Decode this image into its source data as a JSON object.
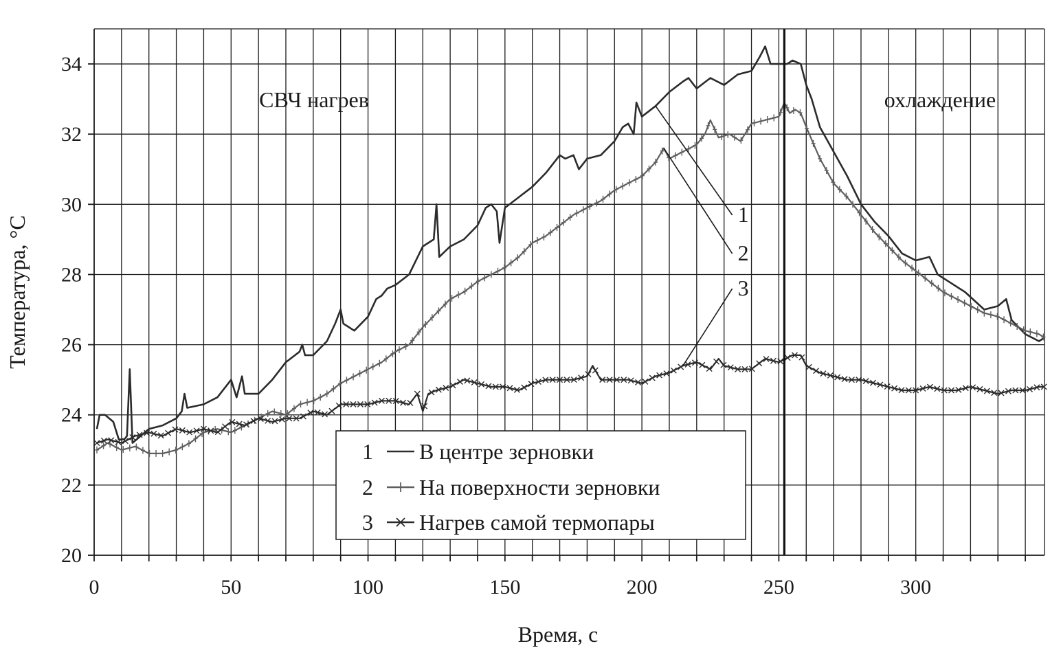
{
  "chart_data": {
    "type": "line",
    "title": "",
    "xlabel": "Время, с",
    "ylabel": "Температура, °С",
    "xlim": [
      0,
      347
    ],
    "ylim": [
      20,
      35
    ],
    "x_ticks": [
      0,
      50,
      100,
      150,
      200,
      250,
      300
    ],
    "y_ticks": [
      20,
      22,
      24,
      26,
      28,
      30,
      32,
      34
    ],
    "x_grid_step": 10,
    "grid": true,
    "legend_position": "bottom-center",
    "phase_boundary_x": 252,
    "regions": [
      {
        "label": "СВЧ нагрев",
        "position": "top-left"
      },
      {
        "label": "охлаждение",
        "position": "top-right"
      }
    ],
    "series": [
      {
        "id": "1",
        "name": "В центре зерновки",
        "color": "#2b2b2b",
        "marker": "none",
        "points": [
          [
            1,
            23.6
          ],
          [
            2,
            24.0
          ],
          [
            4,
            24.0
          ],
          [
            7,
            23.8
          ],
          [
            9,
            23.3
          ],
          [
            11,
            23.3
          ],
          [
            12,
            23.4
          ],
          [
            13,
            25.3
          ],
          [
            14,
            23.2
          ],
          [
            17,
            23.4
          ],
          [
            20,
            23.6
          ],
          [
            25,
            23.7
          ],
          [
            30,
            23.9
          ],
          [
            32,
            24.1
          ],
          [
            33,
            24.6
          ],
          [
            34,
            24.2
          ],
          [
            40,
            24.3
          ],
          [
            45,
            24.5
          ],
          [
            48,
            24.8
          ],
          [
            50,
            25.0
          ],
          [
            52,
            24.5
          ],
          [
            54,
            25.1
          ],
          [
            55,
            24.6
          ],
          [
            60,
            24.6
          ],
          [
            65,
            25.0
          ],
          [
            70,
            25.5
          ],
          [
            75,
            25.8
          ],
          [
            76,
            26.0
          ],
          [
            77,
            25.7
          ],
          [
            80,
            25.7
          ],
          [
            85,
            26.1
          ],
          [
            88,
            26.6
          ],
          [
            90,
            27.0
          ],
          [
            91,
            26.6
          ],
          [
            95,
            26.4
          ],
          [
            100,
            26.8
          ],
          [
            103,
            27.3
          ],
          [
            105,
            27.4
          ],
          [
            107,
            27.6
          ],
          [
            110,
            27.7
          ],
          [
            115,
            28.0
          ],
          [
            120,
            28.8
          ],
          [
            122,
            28.9
          ],
          [
            124,
            29.0
          ],
          [
            125,
            30.0
          ],
          [
            126,
            28.5
          ],
          [
            130,
            28.8
          ],
          [
            135,
            29.0
          ],
          [
            140,
            29.4
          ],
          [
            143,
            29.9
          ],
          [
            145,
            30.0
          ],
          [
            147,
            29.8
          ],
          [
            148,
            28.9
          ],
          [
            150,
            29.9
          ],
          [
            155,
            30.2
          ],
          [
            160,
            30.5
          ],
          [
            165,
            30.9
          ],
          [
            168,
            31.2
          ],
          [
            170,
            31.4
          ],
          [
            172,
            31.3
          ],
          [
            175,
            31.4
          ],
          [
            177,
            31.0
          ],
          [
            180,
            31.3
          ],
          [
            185,
            31.4
          ],
          [
            190,
            31.8
          ],
          [
            193,
            32.2
          ],
          [
            195,
            32.3
          ],
          [
            197,
            32.0
          ],
          [
            198,
            32.9
          ],
          [
            200,
            32.5
          ],
          [
            205,
            32.8
          ],
          [
            210,
            33.2
          ],
          [
            215,
            33.5
          ],
          [
            217,
            33.6
          ],
          [
            220,
            33.3
          ],
          [
            225,
            33.6
          ],
          [
            230,
            33.4
          ],
          [
            235,
            33.7
          ],
          [
            240,
            33.8
          ],
          [
            243,
            34.2
          ],
          [
            245,
            34.5
          ],
          [
            247,
            34.0
          ],
          [
            250,
            34.0
          ],
          [
            253,
            34.0
          ],
          [
            255,
            34.1
          ],
          [
            258,
            34.0
          ],
          [
            260,
            33.4
          ],
          [
            262,
            33.0
          ],
          [
            265,
            32.2
          ],
          [
            270,
            31.5
          ],
          [
            275,
            30.8
          ],
          [
            280,
            30.0
          ],
          [
            285,
            29.5
          ],
          [
            290,
            29.1
          ],
          [
            295,
            28.6
          ],
          [
            300,
            28.4
          ],
          [
            305,
            28.5
          ],
          [
            308,
            28.0
          ],
          [
            312,
            27.8
          ],
          [
            318,
            27.5
          ],
          [
            325,
            27.0
          ],
          [
            330,
            27.1
          ],
          [
            333,
            27.3
          ],
          [
            335,
            26.7
          ],
          [
            340,
            26.3
          ],
          [
            345,
            26.1
          ],
          [
            347,
            26.2
          ]
        ]
      },
      {
        "id": "2",
        "name": "На поверхности зерновки",
        "color": "#5f5f5f",
        "marker": "plus",
        "points": [
          [
            1,
            23.0
          ],
          [
            5,
            23.2
          ],
          [
            10,
            23.0
          ],
          [
            15,
            23.1
          ],
          [
            20,
            22.9
          ],
          [
            25,
            22.9
          ],
          [
            30,
            23.0
          ],
          [
            35,
            23.2
          ],
          [
            40,
            23.5
          ],
          [
            45,
            23.6
          ],
          [
            50,
            23.5
          ],
          [
            55,
            23.7
          ],
          [
            60,
            23.9
          ],
          [
            65,
            24.1
          ],
          [
            70,
            24.0
          ],
          [
            75,
            24.3
          ],
          [
            80,
            24.4
          ],
          [
            85,
            24.6
          ],
          [
            90,
            24.9
          ],
          [
            95,
            25.1
          ],
          [
            100,
            25.3
          ],
          [
            105,
            25.5
          ],
          [
            110,
            25.8
          ],
          [
            115,
            26.0
          ],
          [
            120,
            26.5
          ],
          [
            125,
            26.9
          ],
          [
            130,
            27.3
          ],
          [
            135,
            27.5
          ],
          [
            140,
            27.8
          ],
          [
            145,
            28.0
          ],
          [
            150,
            28.2
          ],
          [
            155,
            28.5
          ],
          [
            160,
            28.9
          ],
          [
            165,
            29.1
          ],
          [
            170,
            29.4
          ],
          [
            175,
            29.7
          ],
          [
            180,
            29.9
          ],
          [
            185,
            30.1
          ],
          [
            190,
            30.4
          ],
          [
            195,
            30.6
          ],
          [
            200,
            30.8
          ],
          [
            205,
            31.2
          ],
          [
            208,
            31.6
          ],
          [
            210,
            31.3
          ],
          [
            215,
            31.5
          ],
          [
            220,
            31.7
          ],
          [
            223,
            32.0
          ],
          [
            225,
            32.4
          ],
          [
            228,
            31.9
          ],
          [
            232,
            32.0
          ],
          [
            236,
            31.8
          ],
          [
            240,
            32.3
          ],
          [
            245,
            32.4
          ],
          [
            250,
            32.5
          ],
          [
            252,
            32.9
          ],
          [
            254,
            32.6
          ],
          [
            256,
            32.7
          ],
          [
            258,
            32.6
          ],
          [
            260,
            32.2
          ],
          [
            265,
            31.3
          ],
          [
            270,
            30.6
          ],
          [
            275,
            30.2
          ],
          [
            280,
            29.7
          ],
          [
            285,
            29.2
          ],
          [
            290,
            28.8
          ],
          [
            295,
            28.4
          ],
          [
            300,
            28.1
          ],
          [
            305,
            27.8
          ],
          [
            310,
            27.5
          ],
          [
            315,
            27.3
          ],
          [
            320,
            27.1
          ],
          [
            325,
            26.9
          ],
          [
            330,
            26.8
          ],
          [
            335,
            26.6
          ],
          [
            340,
            26.4
          ],
          [
            345,
            26.3
          ],
          [
            347,
            26.2
          ]
        ]
      },
      {
        "id": "3",
        "name": "Нагрев самой термопары",
        "color": "#2b2b2b",
        "marker": "x",
        "points": [
          [
            1,
            23.2
          ],
          [
            5,
            23.3
          ],
          [
            10,
            23.2
          ],
          [
            15,
            23.4
          ],
          [
            20,
            23.5
          ],
          [
            25,
            23.4
          ],
          [
            30,
            23.6
          ],
          [
            35,
            23.5
          ],
          [
            40,
            23.6
          ],
          [
            45,
            23.5
          ],
          [
            50,
            23.8
          ],
          [
            55,
            23.7
          ],
          [
            60,
            23.9
          ],
          [
            65,
            23.8
          ],
          [
            70,
            23.9
          ],
          [
            75,
            23.9
          ],
          [
            80,
            24.1
          ],
          [
            85,
            24.0
          ],
          [
            90,
            24.3
          ],
          [
            95,
            24.3
          ],
          [
            100,
            24.3
          ],
          [
            105,
            24.4
          ],
          [
            110,
            24.4
          ],
          [
            115,
            24.3
          ],
          [
            118,
            24.6
          ],
          [
            120,
            24.1
          ],
          [
            122,
            24.6
          ],
          [
            125,
            24.7
          ],
          [
            130,
            24.8
          ],
          [
            135,
            25.0
          ],
          [
            140,
            24.9
          ],
          [
            145,
            24.8
          ],
          [
            150,
            24.8
          ],
          [
            155,
            24.7
          ],
          [
            160,
            24.9
          ],
          [
            165,
            25.0
          ],
          [
            170,
            25.0
          ],
          [
            175,
            25.0
          ],
          [
            180,
            25.1
          ],
          [
            182,
            25.4
          ],
          [
            185,
            25.0
          ],
          [
            190,
            25.0
          ],
          [
            195,
            25.0
          ],
          [
            200,
            24.9
          ],
          [
            205,
            25.1
          ],
          [
            210,
            25.2
          ],
          [
            215,
            25.4
          ],
          [
            220,
            25.5
          ],
          [
            225,
            25.3
          ],
          [
            228,
            25.6
          ],
          [
            230,
            25.4
          ],
          [
            235,
            25.3
          ],
          [
            240,
            25.3
          ],
          [
            245,
            25.6
          ],
          [
            250,
            25.5
          ],
          [
            255,
            25.7
          ],
          [
            258,
            25.7
          ],
          [
            260,
            25.4
          ],
          [
            265,
            25.2
          ],
          [
            270,
            25.1
          ],
          [
            275,
            25.0
          ],
          [
            280,
            25.0
          ],
          [
            285,
            24.9
          ],
          [
            290,
            24.8
          ],
          [
            295,
            24.7
          ],
          [
            300,
            24.7
          ],
          [
            305,
            24.8
          ],
          [
            310,
            24.7
          ],
          [
            315,
            24.7
          ],
          [
            320,
            24.8
          ],
          [
            325,
            24.7
          ],
          [
            330,
            24.6
          ],
          [
            335,
            24.7
          ],
          [
            340,
            24.7
          ],
          [
            345,
            24.8
          ],
          [
            347,
            24.8
          ]
        ]
      }
    ],
    "callouts": [
      {
        "label": "1",
        "series": "1",
        "at_x": 205,
        "label_x": 235,
        "label_y": 29.5
      },
      {
        "label": "2",
        "series": "2",
        "at_x": 208,
        "label_x": 235,
        "label_y": 28.4
      },
      {
        "label": "3",
        "series": "3",
        "at_x": 215,
        "label_x": 235,
        "label_y": 27.4
      }
    ]
  }
}
